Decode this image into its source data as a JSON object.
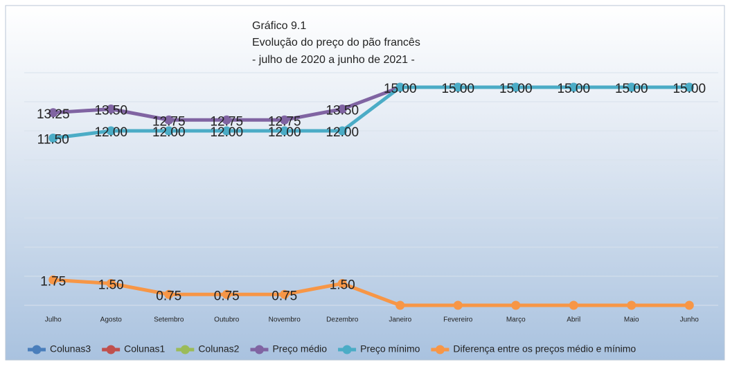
{
  "chart_data": {
    "type": "line",
    "title": "Gráfico 9.1",
    "subtitle": [
      "Evolução do preço do pão francês",
      "-  julho de 2020 a junho de 2021 -"
    ],
    "categories": [
      "Julho",
      "Agosto",
      "Setembro",
      "Outubro",
      "Novembro",
      "Dezembro",
      "Janeiro",
      "Fevereiro",
      "Março",
      "Abril",
      "Maio",
      "Junho"
    ],
    "ylim": [
      0,
      16
    ],
    "yticks": [
      0,
      2,
      4,
      6,
      8,
      10,
      12,
      14,
      16
    ],
    "grid": true,
    "legend": "bottom",
    "series": [
      {
        "name": "Colunas3",
        "color": "#4a7ebb",
        "values": [
          null,
          null,
          null,
          null,
          null,
          null,
          null,
          null,
          null,
          null,
          null,
          null
        ]
      },
      {
        "name": "Colunas1",
        "color": "#c0504d",
        "values": [
          null,
          null,
          null,
          null,
          null,
          null,
          null,
          null,
          null,
          null,
          null,
          null
        ]
      },
      {
        "name": "Colunas2",
        "color": "#9bbb59",
        "values": [
          null,
          null,
          null,
          null,
          null,
          null,
          null,
          null,
          null,
          null,
          null,
          null
        ]
      },
      {
        "name": "Preço médio",
        "color": "#8064a2",
        "values": [
          13.25,
          13.5,
          12.75,
          12.75,
          12.75,
          13.5,
          15,
          15,
          15,
          15,
          15,
          15
        ],
        "value_labels": [
          "13.25",
          "13.50",
          "12.75",
          "12.75",
          "12.75",
          "13.50",
          null,
          null,
          null,
          null,
          null,
          null
        ]
      },
      {
        "name": "Preço mínimo",
        "color": "#4bacc6",
        "values": [
          11.5,
          12,
          12,
          12,
          12,
          12,
          15,
          15,
          15,
          15,
          15,
          15
        ],
        "value_labels": [
          "11.50",
          "12.00",
          "12.00",
          "12.00",
          "12.00",
          "12.00",
          "15.00",
          "15.00",
          "15.00",
          "15.00",
          "15.00",
          "15.00"
        ]
      },
      {
        "name": "Diferença entre os preços médio e mínimo",
        "color": "#f79646",
        "values": [
          1.75,
          1.5,
          0.75,
          0.75,
          0.75,
          1.5,
          0,
          0,
          0,
          0,
          0,
          0
        ],
        "value_labels": [
          "1.75",
          "1.50",
          "0.75",
          "0.75",
          "0.75",
          "1.50",
          null,
          null,
          null,
          null,
          null,
          null
        ]
      }
    ]
  }
}
